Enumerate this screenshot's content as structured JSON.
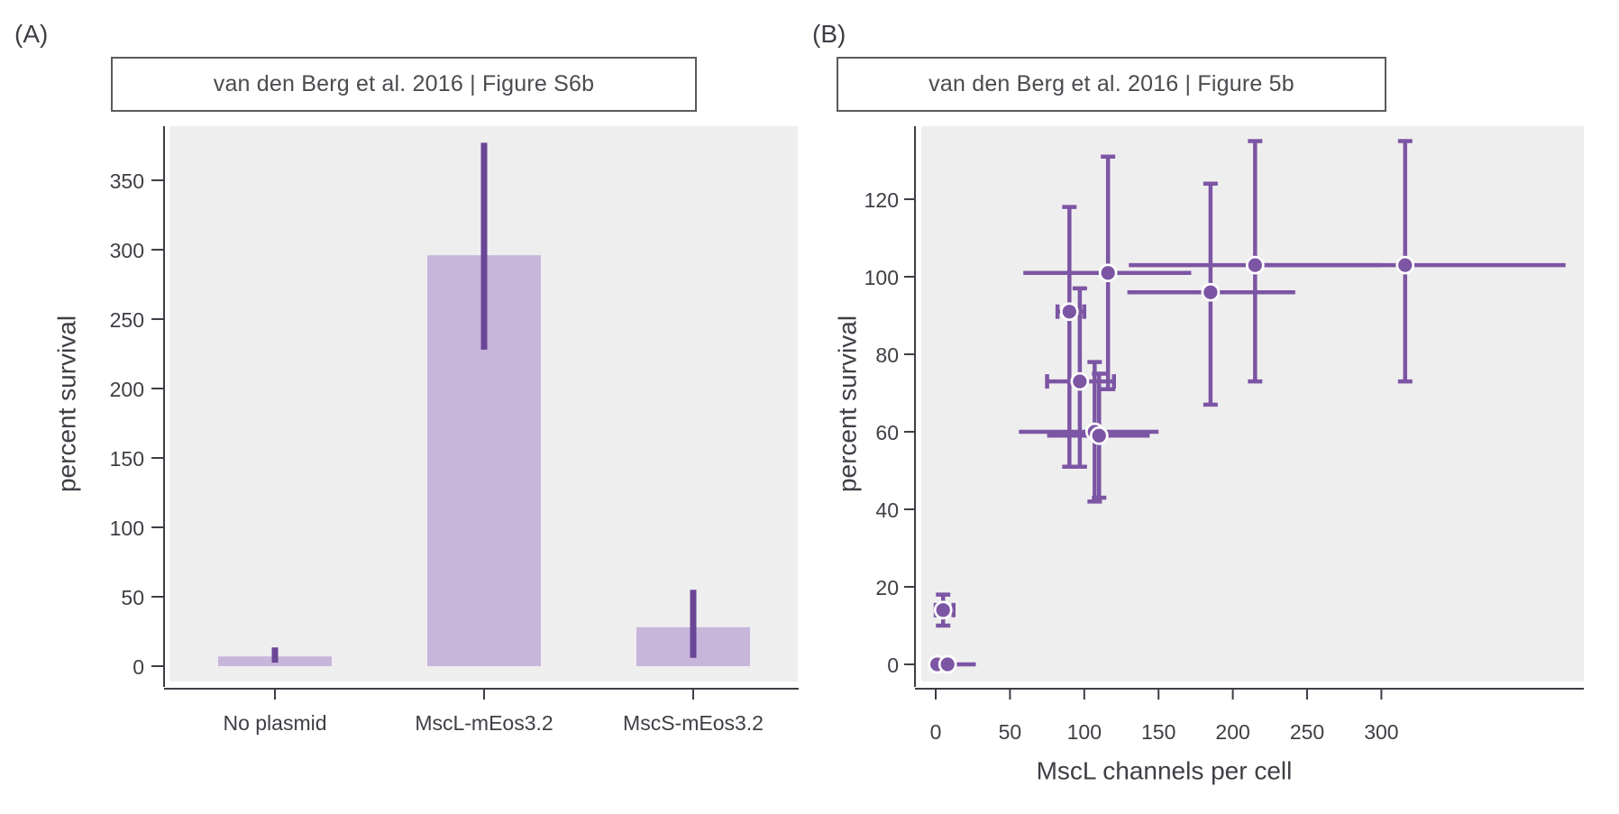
{
  "colors": {
    "plot_bg": "#EFEEEF",
    "bar_fill": "#C8B5DA",
    "bar_error": "#6A4696",
    "point_fill": "#7C55A4",
    "point_edge": "#FFFFFF",
    "axis": "#3F3E45",
    "tick_text": "#3F3E45",
    "title_text": "#4B4B50"
  },
  "chart_data": [
    {
      "panel_label": "(A)",
      "type": "bar",
      "title": "van den Berg et al. 2016 | Figure S6b",
      "xlabel": "",
      "ylabel": "percent survival",
      "categories": [
        "No plasmid",
        "MscL-mEos3.2",
        "MscS-mEos3.2"
      ],
      "values": [
        7,
        296,
        28
      ],
      "error_low": [
        2.5,
        228,
        6
      ],
      "error_high": [
        13.5,
        377,
        55
      ],
      "yticks": [
        0,
        50,
        100,
        150,
        200,
        250,
        300,
        350
      ],
      "ylim": [
        -11,
        388
      ],
      "grid": false,
      "legend": "none"
    },
    {
      "panel_label": "(B)",
      "type": "scatter",
      "title": "van den Berg et al. 2016 | Figure 5b",
      "xlabel": "MscL channels per cell",
      "ylabel": "percent survival",
      "xticks": [
        0,
        50,
        100,
        150,
        200,
        250,
        300
      ],
      "yticks": [
        0,
        20,
        40,
        60,
        80,
        100,
        120
      ],
      "xlim": [
        -10,
        436
      ],
      "ylim": [
        -4.4,
        139
      ],
      "grid": false,
      "legend": "none",
      "points": [
        {
          "x": 1,
          "y": 0,
          "x_err": [
            1,
            1
          ],
          "y_err": [
            0,
            0
          ],
          "x_caps": false
        },
        {
          "x": 8,
          "y": 0,
          "x_err": [
            0,
            27
          ],
          "y_err": [
            0,
            0
          ],
          "x_caps": false
        },
        {
          "x": 5,
          "y": 14,
          "x_err": [
            0,
            12
          ],
          "y_err": [
            10,
            18
          ],
          "x_caps": true
        },
        {
          "x": 90,
          "y": 91,
          "x_err": [
            82,
            100
          ],
          "y_err": [
            51,
            118
          ],
          "x_caps": true
        },
        {
          "x": 97,
          "y": 73,
          "x_err": [
            75,
            120
          ],
          "y_err": [
            51,
            97
          ],
          "x_caps": true
        },
        {
          "x": 107,
          "y": 60,
          "x_err": [
            56,
            150
          ],
          "y_err": [
            42,
            78
          ],
          "x_caps": false
        },
        {
          "x": 110,
          "y": 59,
          "x_err": [
            75,
            144
          ],
          "y_err": [
            43,
            75
          ],
          "x_caps": false
        },
        {
          "x": 116,
          "y": 101,
          "x_err": [
            59,
            172
          ],
          "y_err": [
            71,
            131
          ],
          "x_caps": false
        },
        {
          "x": 185,
          "y": 96,
          "x_err": [
            129,
            242
          ],
          "y_err": [
            67,
            124
          ],
          "x_caps": false
        },
        {
          "x": 215,
          "y": 103,
          "x_err": [
            130,
            300
          ],
          "y_err": [
            73,
            135
          ],
          "x_caps": false
        },
        {
          "x": 316,
          "y": 103,
          "x_err": [
            215,
            424
          ],
          "y_err": [
            73,
            135
          ],
          "x_caps": false
        }
      ]
    }
  ]
}
